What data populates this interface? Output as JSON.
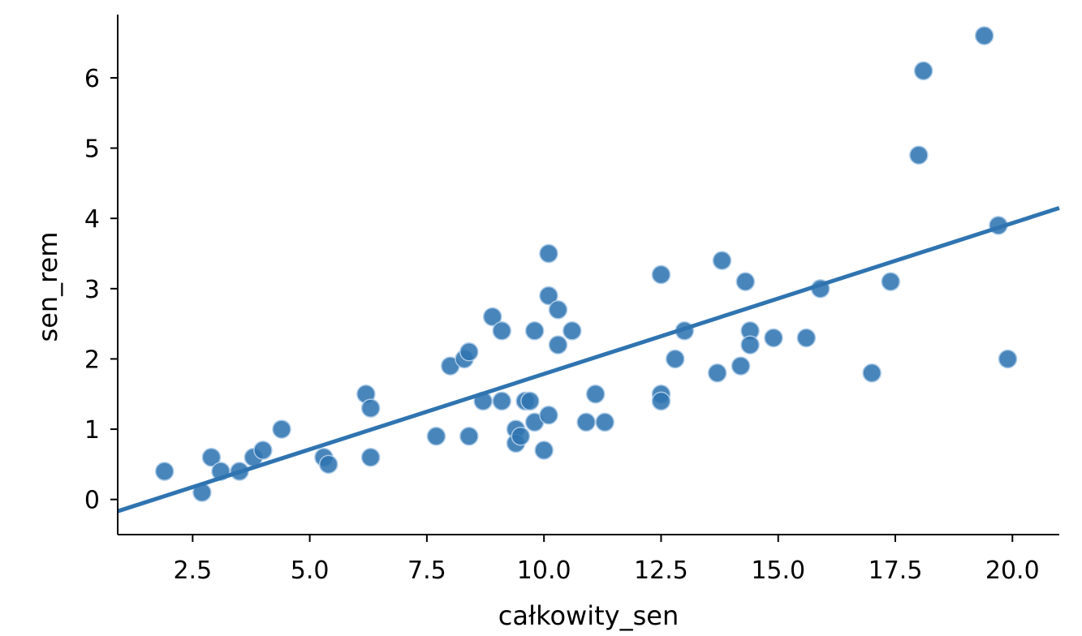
{
  "chart_data": {
    "type": "scatter",
    "title": "",
    "xlabel": "całkowity_sen",
    "ylabel": "sen_rem",
    "xlim": [
      0.9,
      21.0
    ],
    "ylim": [
      -0.5,
      6.9
    ],
    "x_ticks": [
      2.5,
      5.0,
      7.5,
      10.0,
      12.5,
      15.0,
      17.5,
      20.0
    ],
    "x_tick_labels": [
      "2.5",
      "5.0",
      "7.5",
      "10.0",
      "12.5",
      "15.0",
      "17.5",
      "20.0"
    ],
    "y_ticks": [
      0,
      1,
      2,
      3,
      4,
      5,
      6
    ],
    "y_tick_labels": [
      "0",
      "1",
      "2",
      "3",
      "4",
      "5",
      "6"
    ],
    "grid": false,
    "color": "#2f74b0",
    "regression": {
      "slope": 0.2147,
      "intercept": -0.3606
    },
    "points": [
      [
        1.9,
        0.4
      ],
      [
        2.7,
        0.1
      ],
      [
        2.9,
        0.6
      ],
      [
        3.1,
        0.4
      ],
      [
        3.5,
        0.4
      ],
      [
        3.8,
        0.6
      ],
      [
        4.0,
        0.7
      ],
      [
        4.4,
        1.0
      ],
      [
        5.3,
        0.6
      ],
      [
        5.4,
        0.5
      ],
      [
        6.2,
        1.5
      ],
      [
        6.3,
        1.3
      ],
      [
        6.3,
        0.6
      ],
      [
        7.7,
        0.9
      ],
      [
        8.0,
        1.9
      ],
      [
        8.3,
        2.0
      ],
      [
        8.4,
        2.1
      ],
      [
        8.4,
        0.9
      ],
      [
        8.7,
        1.4
      ],
      [
        8.9,
        2.6
      ],
      [
        9.1,
        2.4
      ],
      [
        9.1,
        1.4
      ],
      [
        9.4,
        1.0
      ],
      [
        9.4,
        0.8
      ],
      [
        9.5,
        0.9
      ],
      [
        9.6,
        1.4
      ],
      [
        9.7,
        1.4
      ],
      [
        9.8,
        2.4
      ],
      [
        9.8,
        1.1
      ],
      [
        10.0,
        0.7
      ],
      [
        10.1,
        3.5
      ],
      [
        10.1,
        2.9
      ],
      [
        10.1,
        1.2
      ],
      [
        10.3,
        2.7
      ],
      [
        10.3,
        2.2
      ],
      [
        10.6,
        2.4
      ],
      [
        10.9,
        1.1
      ],
      [
        11.1,
        1.5
      ],
      [
        11.3,
        1.1
      ],
      [
        12.5,
        3.2
      ],
      [
        12.5,
        1.5
      ],
      [
        12.5,
        1.4
      ],
      [
        12.8,
        2.0
      ],
      [
        13.0,
        2.4
      ],
      [
        13.7,
        1.8
      ],
      [
        13.8,
        3.4
      ],
      [
        14.2,
        1.9
      ],
      [
        14.3,
        3.1
      ],
      [
        14.4,
        2.4
      ],
      [
        14.4,
        2.2
      ],
      [
        14.9,
        2.3
      ],
      [
        15.6,
        2.3
      ],
      [
        15.9,
        3.0
      ],
      [
        17.0,
        1.8
      ],
      [
        17.4,
        3.1
      ],
      [
        18.0,
        4.9
      ],
      [
        18.1,
        6.1
      ],
      [
        19.4,
        6.6
      ],
      [
        19.7,
        3.9
      ],
      [
        19.9,
        2.0
      ]
    ]
  }
}
